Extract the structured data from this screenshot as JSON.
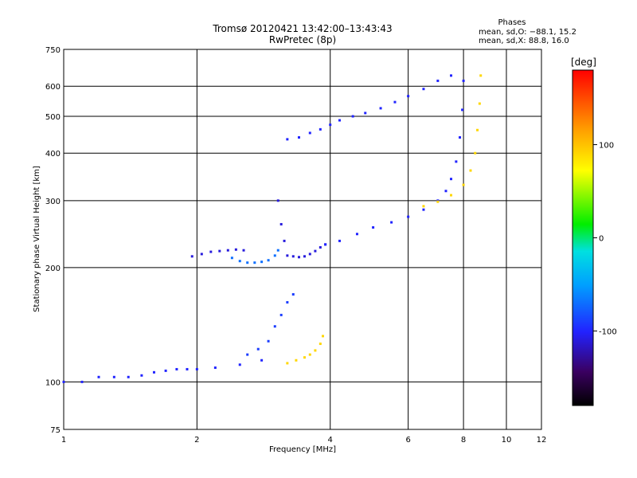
{
  "chart_data": {
    "type": "scatter",
    "title": "Tromsø 20120421 13:42:00–13:43:43",
    "subtitle": "RwPretec (8p)",
    "xlabel": "Frequency [MHz]",
    "ylabel": "Stationary phase Virtual Height [km]",
    "x_scale": "log",
    "y_scale": "log",
    "xlim": [
      1,
      12
    ],
    "ylim": [
      75,
      750
    ],
    "x_ticks": [
      "1",
      "2",
      "4",
      "6",
      "8",
      "10",
      "12"
    ],
    "y_ticks": [
      "75",
      "100",
      "200",
      "300",
      "400",
      "500",
      "600",
      "750"
    ],
    "grid": true,
    "phase_stats": {
      "heading": "Phases",
      "o_line": "mean, sd,O: −88.1, 15.2",
      "x_line": "mean, sd,X:  88.8, 16.0"
    },
    "colorbar": {
      "label": "[deg]",
      "range": [
        -180,
        180
      ],
      "ticks": [
        "100",
        "0",
        "-100"
      ],
      "tick_values": [
        100,
        0,
        -100
      ]
    },
    "series": [
      {
        "name": "O",
        "traces": [
          {
            "color_deg": -100,
            "x": [
              1.0,
              1.1,
              1.2,
              1.3,
              1.4,
              1.5,
              1.6,
              1.7,
              1.8,
              1.9,
              2.0,
              2.2,
              2.5,
              2.8
            ],
            "y": [
              100,
              100,
              103,
              103,
              103,
              104,
              106,
              107,
              108,
              108,
              108,
              109,
              111,
              114
            ]
          },
          {
            "color_deg": -110,
            "x": [
              1.95,
              2.05,
              2.15,
              2.25,
              2.35,
              2.45,
              2.55
            ],
            "y": [
              214,
              217,
              220,
              221,
              222,
              223,
              222
            ]
          },
          {
            "color_deg": -70,
            "x": [
              2.4,
              2.5,
              2.6,
              2.7,
              2.8,
              2.9,
              3.0,
              3.05
            ],
            "y": [
              212,
              208,
              206,
              206,
              207,
              209,
              215,
              222
            ]
          },
          {
            "color_deg": -110,
            "x": [
              3.05,
              3.1,
              3.15,
              3.2,
              3.3,
              3.4,
              3.5,
              3.6,
              3.7,
              3.8,
              3.9
            ],
            "y": [
              300,
              260,
              235,
              215,
              214,
              213,
              214,
              217,
              221,
              226,
              230
            ]
          },
          {
            "color_deg": -100,
            "x": [
              3.9,
              4.2,
              4.6,
              5.0,
              5.5,
              6.0,
              6.5,
              7.0,
              7.3,
              7.5,
              7.7,
              7.85,
              7.95,
              8.0
            ],
            "y": [
              230,
              235,
              245,
              255,
              263,
              272,
              284,
              300,
              318,
              342,
              380,
              440,
              520,
              620
            ]
          },
          {
            "color_deg": -100,
            "x": [
              3.2,
              3.4,
              3.6,
              3.8,
              4.0,
              4.2,
              4.5,
              4.8,
              5.2,
              5.6,
              6.0,
              6.5,
              7.0,
              7.5
            ],
            "y": [
              435,
              440,
              452,
              462,
              475,
              488,
              500,
              510,
              525,
              545,
              565,
              590,
              620,
              640
            ]
          },
          {
            "color_deg": -90,
            "x": [
              2.6,
              2.75,
              2.9,
              3.0,
              3.1,
              3.2,
              3.3
            ],
            "y": [
              118,
              122,
              128,
              140,
              150,
              162,
              170
            ]
          }
        ]
      },
      {
        "name": "X",
        "traces": [
          {
            "color_deg": 90,
            "x": [
              3.2,
              3.35,
              3.5,
              3.6,
              3.7,
              3.8,
              3.85
            ],
            "y": [
              112,
              114,
              116,
              118,
              121,
              126,
              132
            ]
          },
          {
            "color_deg": 90,
            "x": [
              6.5,
              7.0,
              7.5,
              8.0,
              8.3,
              8.5,
              8.6,
              8.7,
              8.75
            ],
            "y": [
              290,
              298,
              310,
              330,
              360,
              400,
              460,
              540,
              640
            ]
          }
        ]
      }
    ]
  }
}
